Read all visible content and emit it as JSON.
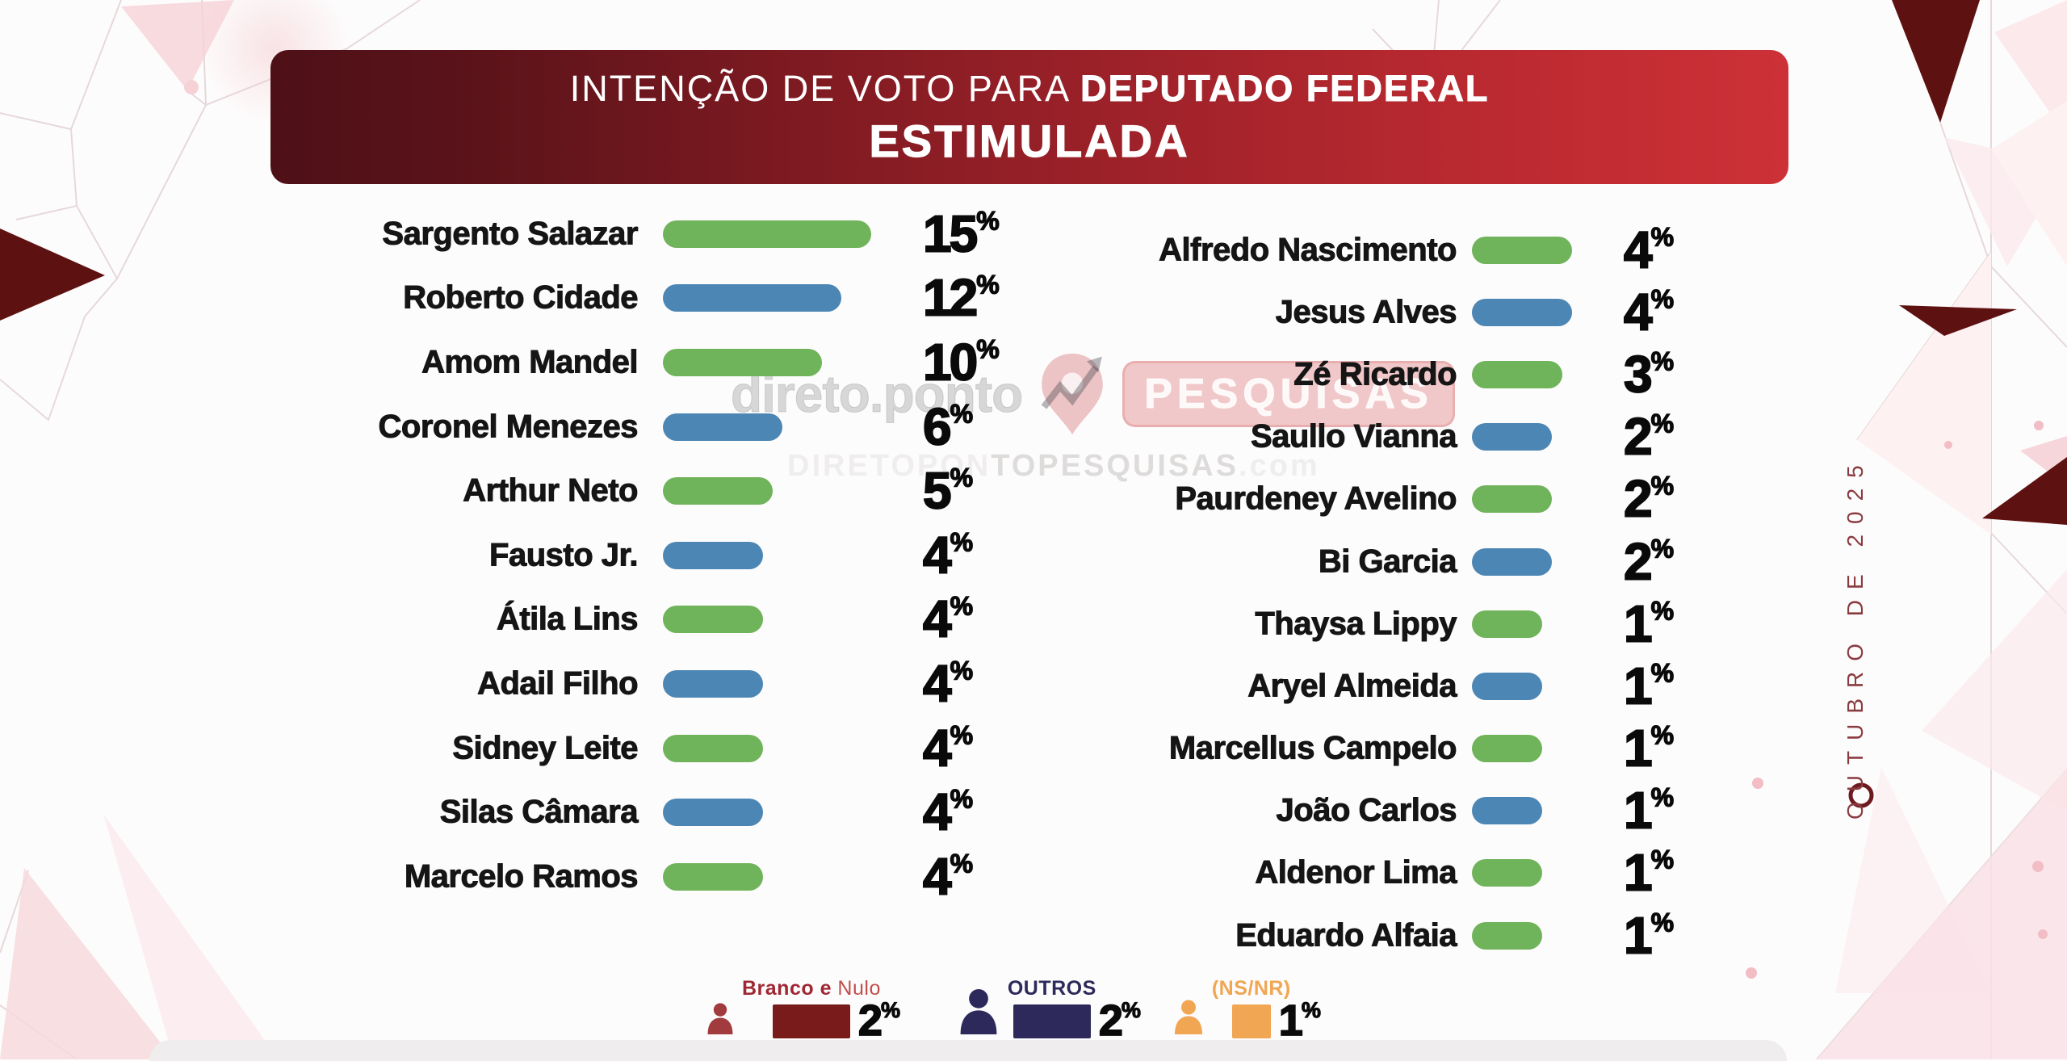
{
  "title": {
    "prefix": "INTENÇÃO DE VOTO PARA ",
    "emphasis": "DEPUTADO FEDERAL",
    "subtitle": "ESTIMULADA"
  },
  "side_date": "OUTUBRO DE 2025",
  "watermark": {
    "brand": "direto.ponto",
    "badge": "PESQUISAS",
    "url_a": "DIRETOPON",
    "url_b": "TOPESQUISAS",
    "url_c": ".com"
  },
  "chart_data": {
    "type": "bar",
    "orientation": "horizontal",
    "unit": "%",
    "title": "INTENÇÃO DE VOTO PARA DEPUTADO FEDERAL — ESTIMULADA",
    "period": "OUTUBRO DE 2025",
    "palette": {
      "green": "#6FB35A",
      "blue": "#4C86B4"
    },
    "left_column": [
      {
        "name": "Sargento Salazar",
        "value": 15,
        "color": "green"
      },
      {
        "name": "Roberto Cidade",
        "value": 12,
        "color": "blue"
      },
      {
        "name": "Amom Mandel",
        "value": 10,
        "color": "green"
      },
      {
        "name": "Coronel Menezes",
        "value": 6,
        "color": "blue"
      },
      {
        "name": "Arthur Neto",
        "value": 5,
        "color": "green"
      },
      {
        "name": "Fausto Jr.",
        "value": 4,
        "color": "blue"
      },
      {
        "name": "Átila Lins",
        "value": 4,
        "color": "green"
      },
      {
        "name": "Adail Filho",
        "value": 4,
        "color": "blue"
      },
      {
        "name": "Sidney Leite",
        "value": 4,
        "color": "green"
      },
      {
        "name": "Silas Câmara",
        "value": 4,
        "color": "blue"
      },
      {
        "name": "Marcelo Ramos",
        "value": 4,
        "color": "green"
      }
    ],
    "right_column": [
      {
        "name": "Alfredo Nascimento",
        "value": 4,
        "color": "green"
      },
      {
        "name": "Jesus Alves",
        "value": 4,
        "color": "blue"
      },
      {
        "name": "Zé Ricardo",
        "value": 3,
        "color": "green"
      },
      {
        "name": "Saullo Vianna",
        "value": 2,
        "color": "blue"
      },
      {
        "name": "Paurdeney Avelino",
        "value": 2,
        "color": "green"
      },
      {
        "name": "Bi Garcia",
        "value": 2,
        "color": "blue"
      },
      {
        "name": "Thaysa Lippy",
        "value": 1,
        "color": "green"
      },
      {
        "name": "Aryel Almeida",
        "value": 1,
        "color": "blue"
      },
      {
        "name": "Marcellus Campelo",
        "value": 1,
        "color": "green"
      },
      {
        "name": "João Carlos",
        "value": 1,
        "color": "blue"
      },
      {
        "name": "Aldenor Lima",
        "value": 1,
        "color": "green"
      },
      {
        "name": "Eduardo Alfaia",
        "value": 1,
        "color": "green"
      }
    ],
    "footer": [
      {
        "label_strong": "Branco e",
        "label_rest": " Nulo",
        "value": 2,
        "rect_color": "#7A1B1B",
        "person_color": "#A23B3E",
        "label_color_strong": "#9F2733",
        "label_color_rest": "#C14F4B",
        "person_h": 40
      },
      {
        "label_strong": "OUTROS",
        "label_rest": "",
        "value": 2,
        "rect_color": "#2D2A5B",
        "person_color": "#2D2A5B",
        "label_color_strong": "#2D2A5B",
        "label_color_rest": "#2D2A5B",
        "person_h": 58
      },
      {
        "label_strong": "(NS/NR)",
        "label_rest": "",
        "value": 1,
        "rect_color": "#F0A653",
        "person_color": "#F0A653",
        "label_color_strong": "#F0A653",
        "label_color_rest": "#F0A653",
        "person_h": 44
      }
    ]
  }
}
